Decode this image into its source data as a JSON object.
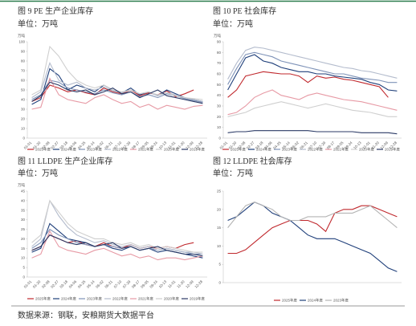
{
  "chart_data": [
    {
      "type": "line",
      "title": "图 9 PE 生产企业库存",
      "unit": "单位：万吨",
      "y_label": "万吨",
      "categories": [
        "01-01",
        "01-20",
        "02-08",
        "02-27",
        "03-18",
        "04-06",
        "04-25",
        "05-14",
        "06-02",
        "06-21",
        "07-10",
        "07-29",
        "08-17",
        "09-05",
        "09-24",
        "10-13",
        "11-01",
        "11-20",
        "12-09",
        "12-28"
      ],
      "ylim": [
        0,
        100
      ],
      "yticks": [
        0,
        10,
        20,
        30,
        40,
        50,
        60,
        70,
        80,
        90,
        100
      ],
      "series": [
        {
          "name": "2025年度",
          "color": "#c0282d",
          "values": [
            38,
            42,
            55,
            52,
            48,
            50,
            47,
            45,
            52,
            48,
            46,
            50,
            44,
            47,
            45,
            49,
            43,
            46,
            50,
            null
          ]
        },
        {
          "name": "2024年度",
          "color": "#1f3f7a",
          "values": [
            35,
            40,
            72,
            65,
            50,
            55,
            52,
            48,
            55,
            50,
            47,
            52,
            45,
            48,
            44,
            50,
            46,
            42,
            40,
            38
          ]
        },
        {
          "name": "2023年度",
          "color": "#7f93b8",
          "values": [
            40,
            45,
            60,
            58,
            52,
            50,
            48,
            46,
            50,
            47,
            45,
            48,
            43,
            45,
            42,
            46,
            44,
            41,
            39,
            37
          ]
        },
        {
          "name": "2022年度",
          "color": "#b4bccd",
          "values": [
            42,
            48,
            78,
            60,
            55,
            58,
            52,
            50,
            53,
            49,
            47,
            50,
            46,
            48,
            44,
            47,
            45,
            42,
            40,
            38
          ]
        },
        {
          "name": "2021年度",
          "color": "#e79aa5",
          "values": [
            30,
            32,
            62,
            45,
            40,
            38,
            36,
            42,
            45,
            40,
            36,
            38,
            32,
            35,
            30,
            34,
            32,
            30,
            33,
            34
          ]
        },
        {
          "name": "2020年度",
          "color": "#cfcfcf",
          "values": [
            45,
            50,
            95,
            85,
            70,
            60,
            55,
            52,
            55,
            50,
            48,
            50,
            46,
            48,
            45,
            47,
            44,
            42,
            41,
            40
          ]
        },
        {
          "name": "2019年度",
          "color": "#2b3a66",
          "values": [
            38,
            44,
            58,
            55,
            50,
            48,
            50,
            45,
            48,
            52,
            46,
            48,
            42,
            46,
            50,
            44,
            42,
            40,
            38,
            36
          ]
        }
      ]
    },
    {
      "type": "line",
      "title": "图 10 PE 社会库存",
      "unit": "单位：万吨",
      "y_label": "万吨",
      "categories": [
        "01-01",
        "01-20",
        "02-08",
        "02-27",
        "03-18",
        "04-06",
        "04-25",
        "05-14",
        "06-02",
        "06-21",
        "07-10",
        "07-29",
        "08-17",
        "09-05",
        "09-24",
        "10-13",
        "11-01",
        "11-20",
        "12-09",
        "12-28"
      ],
      "ylim": [
        0,
        90
      ],
      "yticks": [
        0,
        10,
        20,
        30,
        40,
        50,
        60,
        70,
        80,
        90
      ],
      "series": [
        {
          "name": "2025年度",
          "color": "#c0282d",
          "values": [
            38,
            45,
            58,
            60,
            62,
            61,
            60,
            60,
            58,
            52,
            58,
            56,
            57,
            55,
            54,
            52,
            50,
            48,
            38,
            null
          ]
        },
        {
          "name": "2024年度",
          "color": "#1f3f7a",
          "values": [
            45,
            60,
            75,
            78,
            72,
            70,
            66,
            64,
            62,
            62,
            60,
            60,
            58,
            57,
            56,
            55,
            52,
            50,
            45,
            44
          ]
        },
        {
          "name": "2023年度",
          "color": "#7f93b8",
          "values": [
            50,
            65,
            78,
            80,
            78,
            76,
            72,
            70,
            68,
            66,
            64,
            62,
            60,
            60,
            58,
            56,
            55,
            54,
            52,
            52
          ]
        },
        {
          "name": "2022年度",
          "color": "#b4bccd",
          "values": [
            55,
            70,
            82,
            85,
            84,
            82,
            80,
            78,
            76,
            74,
            72,
            70,
            68,
            66,
            65,
            63,
            62,
            60,
            58,
            56
          ]
        },
        {
          "name": "2021年度",
          "color": "#e79aa5",
          "values": [
            22,
            24,
            30,
            38,
            42,
            45,
            40,
            38,
            36,
            40,
            42,
            40,
            38,
            36,
            35,
            34,
            32,
            30,
            28,
            26
          ]
        },
        {
          "name": "2020年度",
          "color": "#cfcfcf",
          "values": [
            20,
            22,
            24,
            28,
            30,
            32,
            34,
            32,
            30,
            28,
            30,
            32,
            30,
            28,
            26,
            25,
            24,
            22,
            20,
            20
          ]
        },
        {
          "name": "2019年度",
          "color": "#2b3a66",
          "values": [
            5,
            6,
            6,
            7,
            7,
            7,
            7,
            7,
            7,
            7,
            6,
            6,
            6,
            6,
            6,
            5,
            5,
            5,
            5,
            4
          ]
        }
      ]
    },
    {
      "type": "line",
      "title": "图 11 LLDPE 生产企业库存",
      "unit": "单位：万吨",
      "y_label": "万吨",
      "categories": [
        "01-01",
        "01-20",
        "02-08",
        "02-27",
        "03-18",
        "04-06",
        "04-25",
        "05-14",
        "06-02",
        "06-21",
        "07-10",
        "07-29",
        "08-17",
        "09-05",
        "09-24",
        "10-13",
        "11-01",
        "11-20",
        "12-09",
        "12-28"
      ],
      "ylim": [
        0,
        45
      ],
      "yticks": [
        0,
        5,
        10,
        15,
        20,
        25,
        30,
        35,
        40,
        45
      ],
      "series": [
        {
          "name": "2025年度",
          "color": "#c0282d",
          "values": [
            14,
            16,
            22,
            20,
            18,
            19,
            17,
            16,
            18,
            16,
            15,
            17,
            15,
            16,
            15,
            16,
            15,
            17,
            18,
            null
          ]
        },
        {
          "name": "2024年度",
          "color": "#1f3f7a",
          "values": [
            13,
            15,
            28,
            24,
            20,
            19,
            18,
            16,
            17,
            15,
            14,
            16,
            14,
            15,
            13,
            14,
            13,
            12,
            11,
            10
          ]
        },
        {
          "name": "2023年度",
          "color": "#7f93b8",
          "values": [
            15,
            18,
            25,
            22,
            20,
            18,
            17,
            16,
            17,
            16,
            15,
            16,
            14,
            15,
            14,
            15,
            14,
            13,
            12,
            12
          ]
        },
        {
          "name": "2022年度",
          "color": "#b4bccd",
          "values": [
            16,
            20,
            40,
            32,
            26,
            22,
            20,
            18,
            19,
            17,
            16,
            17,
            15,
            16,
            14,
            15,
            14,
            13,
            13,
            12
          ]
        },
        {
          "name": "2021年度",
          "color": "#e79aa5",
          "values": [
            10,
            12,
            24,
            16,
            14,
            13,
            12,
            14,
            15,
            13,
            11,
            12,
            10,
            11,
            9,
            10,
            10,
            9,
            10,
            11
          ]
        },
        {
          "name": "2020年度",
          "color": "#cfcfcf",
          "values": [
            18,
            22,
            40,
            34,
            28,
            24,
            22,
            20,
            20,
            18,
            17,
            18,
            16,
            17,
            15,
            16,
            15,
            14,
            13,
            13
          ]
        },
        {
          "name": "2019年度",
          "color": "#2b3a66",
          "values": [
            14,
            16,
            22,
            20,
            18,
            17,
            18,
            16,
            17,
            18,
            15,
            16,
            14,
            15,
            16,
            14,
            13,
            12,
            12,
            11
          ]
        }
      ]
    },
    {
      "type": "line",
      "title": "图 12 LLDPE 社会库存",
      "unit": "单位：万吨",
      "categories": [
        null,
        null,
        null,
        null,
        null,
        null,
        null,
        null,
        null,
        null,
        null,
        null,
        null,
        null,
        null,
        null,
        null,
        null,
        null,
        null
      ],
      "ylim": [
        0,
        25
      ],
      "yticks": [
        0,
        5,
        10,
        15,
        20,
        25
      ],
      "series": [
        {
          "name": "2025年度",
          "color": "#c0282d",
          "values": [
            8,
            8,
            9,
            11,
            13,
            15,
            16,
            17,
            17,
            17,
            16,
            14,
            19,
            20,
            20,
            21,
            21,
            20,
            19,
            18
          ]
        },
        {
          "name": "2024年度",
          "color": "#1f3f7a",
          "values": [
            17,
            18,
            20,
            22,
            21,
            19,
            18,
            17,
            15,
            13,
            12,
            12,
            12,
            11,
            10,
            9,
            8,
            6,
            4,
            3
          ]
        },
        {
          "name": "2023年度",
          "color": "#b4b4b4",
          "values": [
            15,
            18,
            21,
            22,
            21,
            20,
            18,
            17,
            17,
            18,
            18,
            18,
            19,
            19,
            19,
            20,
            21,
            19,
            17,
            15
          ]
        }
      ]
    }
  ],
  "footer": "数据来源：钢联，安粮期货大数据平台"
}
